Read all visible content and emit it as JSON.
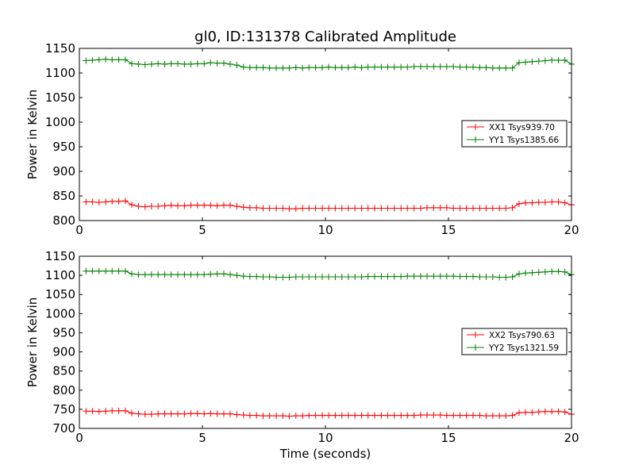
{
  "chart_data": [
    {
      "type": "line",
      "title": "gl0, ID:131378 Calibrated Amplitude",
      "xlabel": "",
      "ylabel": "Power in Kelvin",
      "xlim": [
        0,
        20
      ],
      "ylim": [
        800,
        1150
      ],
      "xticks": [
        "0",
        "5",
        "10",
        "15",
        "20"
      ],
      "yticks": [
        "800",
        "850",
        "900",
        "950",
        "1000",
        "1050",
        "1100",
        "1150"
      ],
      "grid": false,
      "legend": "center-right",
      "x": [
        0.27,
        0.53,
        0.8,
        1.07,
        1.33,
        1.6,
        1.87,
        2.13,
        2.4,
        2.67,
        2.93,
        3.2,
        3.47,
        3.73,
        4.0,
        4.27,
        4.53,
        4.8,
        5.07,
        5.33,
        5.6,
        5.87,
        6.13,
        6.4,
        6.67,
        6.93,
        7.2,
        7.47,
        7.73,
        8.0,
        8.27,
        8.53,
        8.8,
        9.07,
        9.33,
        9.6,
        9.87,
        10.13,
        10.4,
        10.67,
        10.93,
        11.2,
        11.47,
        11.73,
        12.0,
        12.27,
        12.53,
        12.8,
        13.07,
        13.33,
        13.6,
        13.87,
        14.13,
        14.4,
        14.67,
        14.93,
        15.2,
        15.47,
        15.73,
        16.0,
        16.27,
        16.53,
        16.8,
        17.07,
        17.33,
        17.6,
        17.87,
        18.13,
        18.4,
        18.67,
        18.93,
        19.2,
        19.47,
        19.73,
        20.0
      ],
      "series": [
        {
          "name": "XX1 Tsys939.70",
          "color": "#ff0000",
          "values": [
            838,
            838,
            837,
            838,
            839,
            839,
            840,
            832,
            829,
            828,
            829,
            829,
            830,
            831,
            830,
            830,
            831,
            831,
            831,
            831,
            830,
            831,
            831,
            829,
            827,
            826,
            826,
            825,
            825,
            825,
            825,
            824,
            824,
            825,
            825,
            825,
            825,
            825,
            825,
            825,
            825,
            825,
            825,
            825,
            825,
            825,
            825,
            825,
            825,
            825,
            825,
            825,
            826,
            826,
            826,
            826,
            825,
            825,
            825,
            825,
            825,
            825,
            825,
            825,
            825,
            826,
            834,
            836,
            836,
            837,
            837,
            838,
            838,
            836,
            832
          ]
        },
        {
          "name": "YY1 Tsys1385.66",
          "color": "#008000",
          "values": [
            1125,
            1126,
            1127,
            1128,
            1127,
            1127,
            1127,
            1119,
            1118,
            1117,
            1118,
            1119,
            1118,
            1119,
            1119,
            1118,
            1118,
            1119,
            1119,
            1121,
            1120,
            1120,
            1118,
            1116,
            1112,
            1111,
            1111,
            1111,
            1110,
            1110,
            1110,
            1110,
            1111,
            1110,
            1111,
            1111,
            1111,
            1112,
            1111,
            1111,
            1111,
            1112,
            1111,
            1112,
            1112,
            1112,
            1112,
            1112,
            1112,
            1112,
            1113,
            1113,
            1113,
            1113,
            1113,
            1113,
            1113,
            1112,
            1112,
            1112,
            1111,
            1111,
            1110,
            1110,
            1110,
            1110,
            1121,
            1122,
            1123,
            1124,
            1125,
            1126,
            1126,
            1126,
            1118
          ]
        }
      ]
    },
    {
      "type": "line",
      "title": "",
      "xlabel": "Time (seconds)",
      "ylabel": "Power in Kelvin",
      "xlim": [
        0,
        20
      ],
      "ylim": [
        700,
        1150
      ],
      "xticks": [
        "0",
        "5",
        "10",
        "15",
        "20"
      ],
      "yticks": [
        "700",
        "750",
        "800",
        "850",
        "900",
        "950",
        "1000",
        "1050",
        "1100",
        "1150"
      ],
      "grid": false,
      "legend": "center-right",
      "x": [
        0.27,
        0.53,
        0.8,
        1.07,
        1.33,
        1.6,
        1.87,
        2.13,
        2.4,
        2.67,
        2.93,
        3.2,
        3.47,
        3.73,
        4.0,
        4.27,
        4.53,
        4.8,
        5.07,
        5.33,
        5.6,
        5.87,
        6.13,
        6.4,
        6.67,
        6.93,
        7.2,
        7.47,
        7.73,
        8.0,
        8.27,
        8.53,
        8.8,
        9.07,
        9.33,
        9.6,
        9.87,
        10.13,
        10.4,
        10.67,
        10.93,
        11.2,
        11.47,
        11.73,
        12.0,
        12.27,
        12.53,
        12.8,
        13.07,
        13.33,
        13.6,
        13.87,
        14.13,
        14.4,
        14.67,
        14.93,
        15.2,
        15.47,
        15.73,
        16.0,
        16.27,
        16.53,
        16.8,
        17.07,
        17.33,
        17.6,
        17.87,
        18.13,
        18.4,
        18.67,
        18.93,
        19.2,
        19.47,
        19.73,
        20.0
      ],
      "series": [
        {
          "name": "XX2 Tsys790.63",
          "color": "#ff0000",
          "values": [
            745,
            745,
            744,
            745,
            746,
            746,
            746,
            740,
            738,
            737,
            737,
            738,
            738,
            738,
            738,
            738,
            739,
            739,
            738,
            739,
            738,
            738,
            738,
            736,
            735,
            734,
            734,
            733,
            733,
            733,
            733,
            732,
            733,
            733,
            734,
            734,
            734,
            734,
            734,
            734,
            734,
            734,
            734,
            734,
            734,
            734,
            734,
            734,
            734,
            734,
            734,
            735,
            735,
            735,
            735,
            734,
            734,
            734,
            734,
            734,
            734,
            733,
            733,
            733,
            733,
            734,
            741,
            742,
            742,
            743,
            744,
            744,
            744,
            743,
            737
          ]
        },
        {
          "name": "YY2 Tsys1321.59",
          "color": "#008000",
          "values": [
            1111,
            1111,
            1111,
            1111,
            1111,
            1111,
            1111,
            1104,
            1102,
            1102,
            1102,
            1102,
            1102,
            1102,
            1102,
            1102,
            1102,
            1102,
            1102,
            1103,
            1104,
            1104,
            1102,
            1100,
            1098,
            1097,
            1097,
            1096,
            1096,
            1095,
            1095,
            1095,
            1096,
            1096,
            1096,
            1096,
            1096,
            1096,
            1096,
            1096,
            1096,
            1096,
            1096,
            1097,
            1097,
            1097,
            1097,
            1097,
            1097,
            1098,
            1098,
            1098,
            1098,
            1098,
            1098,
            1098,
            1098,
            1097,
            1097,
            1097,
            1096,
            1096,
            1096,
            1095,
            1095,
            1096,
            1104,
            1106,
            1107,
            1108,
            1109,
            1110,
            1110,
            1109,
            1102
          ]
        }
      ]
    }
  ]
}
